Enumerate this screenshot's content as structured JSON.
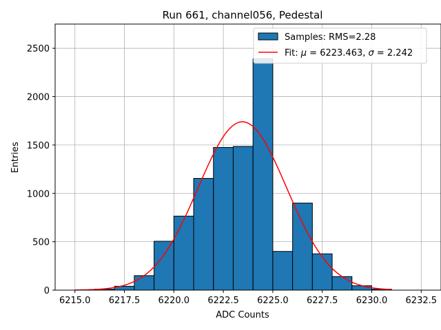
{
  "chart_data": {
    "type": "bar",
    "title": "Run 661, channel056, Pedestal",
    "xlabel": "ADC Counts",
    "ylabel": "Entries",
    "xlim": [
      6214.0,
      6233.5
    ],
    "ylim": [
      0,
      2750
    ],
    "grid": true,
    "legend_position": "top-right",
    "x_ticks": [
      6215.0,
      6217.5,
      6220.0,
      6222.5,
      6225.0,
      6227.5,
      6230.0,
      6232.5
    ],
    "x_tick_labels": [
      "6215.0",
      "6217.5",
      "6220.0",
      "6222.5",
      "6225.0",
      "6227.5",
      "6230.0",
      "6232.5"
    ],
    "y_ticks": [
      0,
      500,
      1000,
      1500,
      2000,
      2500
    ],
    "y_tick_labels": [
      "0",
      "500",
      "1000",
      "1500",
      "2000",
      "2500"
    ],
    "histogram": {
      "name": "Samples: RMS=2.28",
      "bin_edges": [
        6216.0,
        6217.0,
        6218.0,
        6219.0,
        6220.0,
        6221.0,
        6222.0,
        6223.0,
        6224.0,
        6225.0,
        6226.0,
        6227.0,
        6228.0,
        6229.0,
        6230.0,
        6231.0
      ],
      "counts": [
        10,
        40,
        150,
        505,
        765,
        1155,
        1475,
        1485,
        2390,
        400,
        900,
        375,
        140,
        45,
        10
      ],
      "color": "#1f77b4",
      "edgecolor": "#000000"
    },
    "fit": {
      "name_text": "Fit: ",
      "name_mu": "μ",
      "name_mid": " = 6223.463, ",
      "name_sigma": "σ",
      "name_end": " = 2.242",
      "mu": 6223.463,
      "sigma": 2.242,
      "amplitude": 1740,
      "x_range": [
        6215.0,
        6231.0
      ],
      "color": "#ff0000"
    }
  }
}
